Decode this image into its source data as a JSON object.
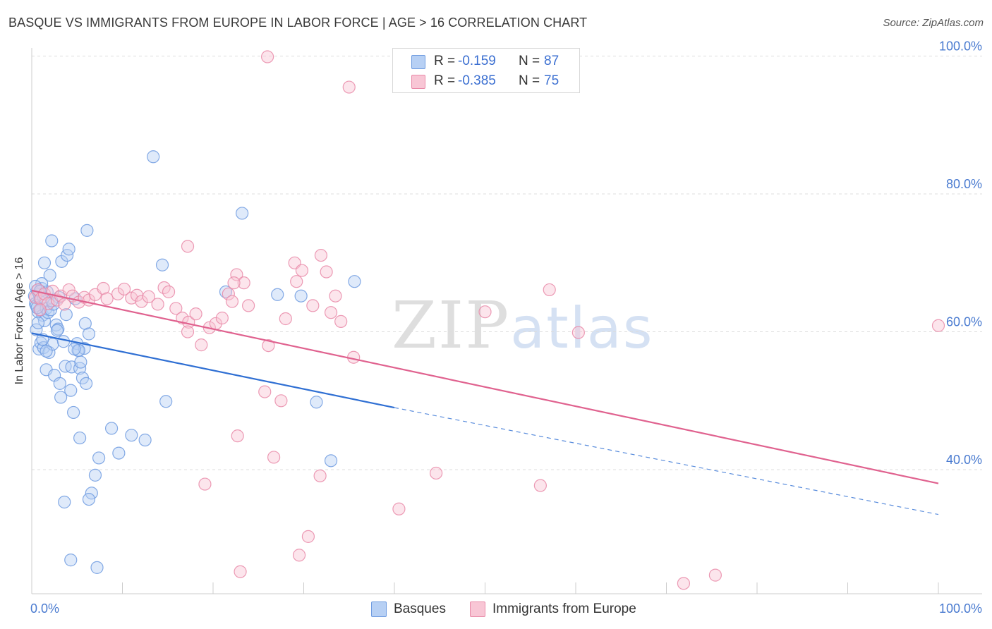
{
  "title": "BASQUE VS IMMIGRANTS FROM EUROPE IN LABOR FORCE | AGE > 16 CORRELATION CHART",
  "source": "Source: ZipAtlas.com",
  "watermark": {
    "zip": "ZIP",
    "atlas": "atlas"
  },
  "legend_box": {
    "rows": [
      {
        "r_label": "R =",
        "r_value": "-0.159",
        "n_label": "N =",
        "n_value": "87",
        "color": "#b7d0f4",
        "stroke": "#6e9be0"
      },
      {
        "r_label": "R =",
        "r_value": "-0.385",
        "n_label": "N =",
        "n_value": "75",
        "color": "#f8c6d5",
        "stroke": "#e98aa8"
      }
    ]
  },
  "bottom_legend": {
    "basques": "Basques",
    "immigrants": "Immigrants from Europe"
  },
  "chart_data": {
    "type": "scatter",
    "title": "BASQUE VS IMMIGRANTS FROM EUROPE IN LABOR FORCE | AGE > 16 CORRELATION CHART",
    "xlabel": "",
    "ylabel": "In Labor Force | Age > 16",
    "xlim": [
      0,
      100
    ],
    "ylim": [
      22,
      102
    ],
    "x_tick_labels": [
      "0.0%",
      "100.0%"
    ],
    "y_ticks": [
      40,
      60,
      80,
      100
    ],
    "y_tick_labels": [
      "40.0%",
      "60.0%",
      "80.0%",
      "100.0%"
    ],
    "grid": true,
    "colors": {
      "basques": "#6e9be0",
      "basques_fill": "#b7d0f4",
      "basques_line": "#2f6fd3",
      "immigrants": "#e98aa8",
      "immigrants_fill": "#f8c6d5",
      "immigrants_line": "#e0628f"
    },
    "series": [
      {
        "name": "Basques",
        "points": [
          [
            0.3,
            65.2
          ],
          [
            0.4,
            64.1
          ],
          [
            0.5,
            63.8
          ],
          [
            0.6,
            66.0
          ],
          [
            0.7,
            62.9
          ],
          [
            0.8,
            65.5
          ],
          [
            0.9,
            64.7
          ],
          [
            1.0,
            63.2
          ],
          [
            1.1,
            66.3
          ],
          [
            1.2,
            62.4
          ],
          [
            1.3,
            65.0
          ],
          [
            1.4,
            61.6
          ],
          [
            1.5,
            64.5
          ],
          [
            1.6,
            63.4
          ],
          [
            1.7,
            65.8
          ],
          [
            1.8,
            62.8
          ],
          [
            0.5,
            60.3
          ],
          [
            0.8,
            57.5
          ],
          [
            1.0,
            58.4
          ],
          [
            1.3,
            57.7
          ],
          [
            1.6,
            54.5
          ],
          [
            1.9,
            57.0
          ],
          [
            2.0,
            68.2
          ],
          [
            2.2,
            73.2
          ],
          [
            2.3,
            58.2
          ],
          [
            2.5,
            53.7
          ],
          [
            2.7,
            61.0
          ],
          [
            2.9,
            60.4
          ],
          [
            3.0,
            65.0
          ],
          [
            3.1,
            52.5
          ],
          [
            3.2,
            50.5
          ],
          [
            3.3,
            70.2
          ],
          [
            1.4,
            70.0
          ],
          [
            3.5,
            58.6
          ],
          [
            3.7,
            55.0
          ],
          [
            3.9,
            71.1
          ],
          [
            4.1,
            72.0
          ],
          [
            4.3,
            51.5
          ],
          [
            4.4,
            54.9
          ],
          [
            4.6,
            48.3
          ],
          [
            4.8,
            64.8
          ],
          [
            5.0,
            58.3
          ],
          [
            5.1,
            57.3
          ],
          [
            5.3,
            54.7
          ],
          [
            5.4,
            55.6
          ],
          [
            5.6,
            53.3
          ],
          [
            5.8,
            57.6
          ],
          [
            5.9,
            61.2
          ],
          [
            6.0,
            52.5
          ],
          [
            6.1,
            74.7
          ],
          [
            6.3,
            59.7
          ],
          [
            5.3,
            44.6
          ],
          [
            6.6,
            36.6
          ],
          [
            6.3,
            35.7
          ],
          [
            7.2,
            25.8
          ],
          [
            7.0,
            39.2
          ],
          [
            7.4,
            41.7
          ],
          [
            8.8,
            46.0
          ],
          [
            9.6,
            42.4
          ],
          [
            11.0,
            45.0
          ],
          [
            12.5,
            44.3
          ],
          [
            13.4,
            85.4
          ],
          [
            14.4,
            69.7
          ],
          [
            14.8,
            49.9
          ],
          [
            3.6,
            35.3
          ],
          [
            4.3,
            26.9
          ],
          [
            23.2,
            77.2
          ],
          [
            21.4,
            65.8
          ],
          [
            27.1,
            65.4
          ],
          [
            29.7,
            65.2
          ],
          [
            35.6,
            67.3
          ],
          [
            31.4,
            49.8
          ],
          [
            33.0,
            41.3
          ],
          [
            0.6,
            63.5
          ],
          [
            1.1,
            67.0
          ],
          [
            0.4,
            66.6
          ],
          [
            0.9,
            65.9
          ],
          [
            2.1,
            63.2
          ],
          [
            2.4,
            64.0
          ],
          [
            2.8,
            60.2
          ],
          [
            5.2,
            57.3
          ],
          [
            4.7,
            57.5
          ],
          [
            3.8,
            62.5
          ],
          [
            2.2,
            64.5
          ],
          [
            1.6,
            57.2
          ],
          [
            1.2,
            58.9
          ],
          [
            0.7,
            61.3
          ]
        ],
        "trend": {
          "x_start": 0,
          "y_start": 59.8,
          "x_solid_end": 40,
          "y_solid_end": 49.0,
          "x_dash_end": 100,
          "y_dash_end": 33.5
        }
      },
      {
        "name": "Immigrants from Europe",
        "points": [
          [
            0.4,
            65.0
          ],
          [
            0.7,
            66.1
          ],
          [
            1.0,
            64.8
          ],
          [
            1.4,
            65.5
          ],
          [
            1.8,
            64.1
          ],
          [
            2.3,
            65.9
          ],
          [
            2.8,
            64.6
          ],
          [
            3.2,
            65.2
          ],
          [
            3.6,
            64.0
          ],
          [
            4.1,
            66.1
          ],
          [
            4.5,
            65.2
          ],
          [
            5.2,
            64.3
          ],
          [
            5.8,
            65.0
          ],
          [
            6.3,
            64.6
          ],
          [
            7.0,
            65.4
          ],
          [
            7.9,
            66.3
          ],
          [
            8.3,
            64.8
          ],
          [
            9.5,
            65.5
          ],
          [
            10.2,
            66.2
          ],
          [
            11.0,
            64.9
          ],
          [
            11.6,
            65.3
          ],
          [
            12.1,
            64.4
          ],
          [
            12.9,
            65.1
          ],
          [
            13.9,
            64.0
          ],
          [
            14.6,
            66.4
          ],
          [
            15.1,
            65.8
          ],
          [
            15.9,
            63.4
          ],
          [
            16.6,
            62.0
          ],
          [
            17.3,
            61.4
          ],
          [
            18.1,
            62.6
          ],
          [
            18.7,
            58.1
          ],
          [
            19.6,
            60.6
          ],
          [
            20.3,
            61.2
          ],
          [
            21.0,
            62.0
          ],
          [
            21.7,
            65.5
          ],
          [
            22.1,
            64.4
          ],
          [
            22.6,
            68.3
          ],
          [
            23.4,
            67.1
          ],
          [
            23.9,
            63.8
          ],
          [
            17.2,
            72.4
          ],
          [
            17.2,
            60.0
          ],
          [
            22.3,
            67.1
          ],
          [
            26.1,
            58.0
          ],
          [
            29.2,
            67.3
          ],
          [
            28.0,
            61.9
          ],
          [
            29.0,
            70.0
          ],
          [
            29.8,
            68.9
          ],
          [
            31.0,
            63.8
          ],
          [
            31.9,
            71.1
          ],
          [
            32.5,
            68.7
          ],
          [
            33.0,
            62.8
          ],
          [
            33.5,
            65.2
          ],
          [
            34.1,
            61.5
          ],
          [
            35.5,
            56.3
          ],
          [
            35.0,
            95.5
          ],
          [
            26.0,
            99.9
          ],
          [
            25.7,
            51.3
          ],
          [
            27.5,
            50.0
          ],
          [
            22.7,
            44.9
          ],
          [
            26.7,
            41.8
          ],
          [
            19.1,
            37.9
          ],
          [
            31.8,
            39.1
          ],
          [
            40.5,
            34.3
          ],
          [
            44.6,
            39.5
          ],
          [
            50.0,
            62.9
          ],
          [
            56.1,
            37.7
          ],
          [
            57.1,
            66.1
          ],
          [
            60.3,
            59.9
          ],
          [
            71.9,
            23.5
          ],
          [
            75.4,
            24.7
          ],
          [
            100.0,
            60.9
          ],
          [
            23.0,
            25.2
          ],
          [
            29.5,
            27.6
          ],
          [
            30.5,
            30.3
          ],
          [
            0.9,
            63.2
          ]
        ],
        "trend": {
          "x_start": 0,
          "y_start": 66.0,
          "x_end": 100,
          "y_end": 38.0
        }
      }
    ]
  }
}
